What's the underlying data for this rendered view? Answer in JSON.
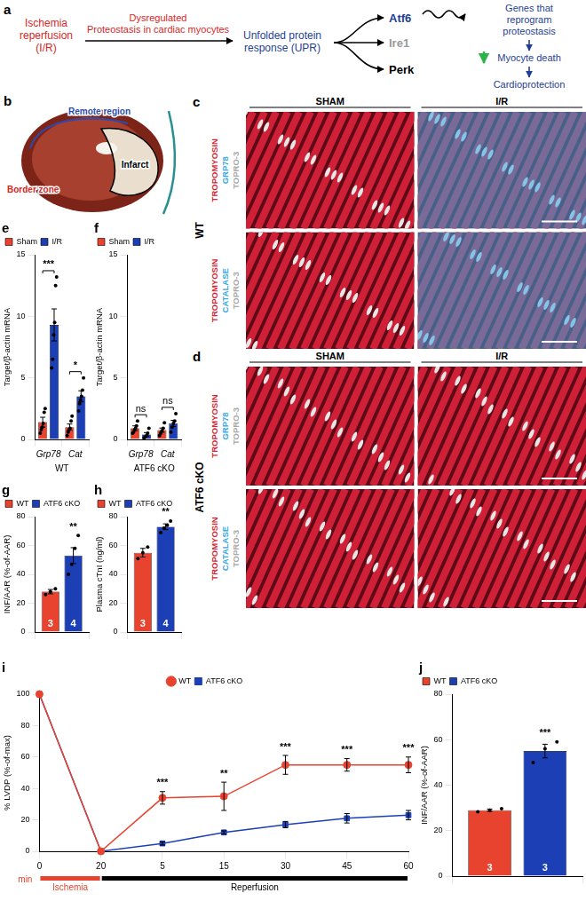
{
  "diagram": {
    "tag": "a",
    "source": {
      "lines": [
        "Ischemia",
        "reperfusion",
        "(I/R)"
      ],
      "color": "#d7261e"
    },
    "edge": {
      "lines": [
        "Dysregulated",
        "Proteostasis in cardiac myocytes"
      ],
      "color": "#d7261e"
    },
    "target": {
      "lines": [
        "Unfolded protein",
        "response (UPR)"
      ],
      "color": "#1f3f95"
    },
    "branches": [
      {
        "label": "Atf6",
        "color": "#1f3f95"
      },
      {
        "label": "Ire1",
        "color": "#9a9a9a"
      },
      {
        "label": "Perk",
        "color": "#000000"
      }
    ],
    "outcomes": [
      {
        "lines": [
          "Genes that",
          "reprogram",
          "proteostasis"
        ]
      },
      {
        "lines": [
          "Myocyte death"
        ]
      },
      {
        "lines": [
          "Cardioprotection"
        ]
      }
    ],
    "outcome_color": "#1f3f95"
  },
  "heart": {
    "tag": "b",
    "regions": [
      {
        "label": "Remote region",
        "color": "#2b4bb0"
      },
      {
        "label": "Border zone",
        "color": "#d7261e"
      },
      {
        "label": "Infarct",
        "color": "#000000"
      }
    ]
  },
  "micrographs": {
    "stain_colors": {
      "TROPOMYOSIN": "#d81f36",
      "GRP78": "#35a8e8",
      "CATALASE": "#35a8e8",
      "TOPRO-3": "#a8a8a8"
    },
    "panels": [
      {
        "tag": "c",
        "genotype": "WT",
        "columns": [
          "SHAM",
          "I/R"
        ],
        "rows": [
          [
            "TROPOMYOSIN",
            "GRP78",
            "TOPRO-3"
          ],
          [
            "TROPOMYOSIN",
            "CATALASE",
            "TOPRO-3"
          ]
        ]
      },
      {
        "tag": "d",
        "genotype": "ATF6 cKO",
        "columns": [
          "SHAM",
          "I/R"
        ],
        "rows": [
          [
            "TROPOMYOSIN",
            "GRP78",
            "TOPRO-3"
          ],
          [
            "TROPOMYOSIN",
            "CATALASE",
            "TOPRO-3"
          ]
        ]
      }
    ]
  },
  "chart_data": [
    {
      "tag": "e",
      "type": "bar",
      "y_label": "Target/β-actin mRNA",
      "x_label": "WT",
      "categories": [
        "Grp78",
        "Cat"
      ],
      "ylim": [
        0,
        15
      ],
      "yticks": [
        0,
        5,
        10,
        15
      ],
      "grid": false,
      "legend": "top-left",
      "significance": [
        "***",
        "*"
      ],
      "series": [
        {
          "name": "Sham",
          "color": "#e8432f",
          "values": [
            1.4,
            1.0
          ],
          "errors": [
            0.4,
            0.25
          ],
          "points": [
            [
              0.5,
              0.8,
              1.0,
              1.3,
              2.2,
              2.5
            ],
            [
              0.3,
              0.6,
              0.8,
              0.9,
              1.5,
              1.9
            ]
          ]
        },
        {
          "name": "I/R",
          "color": "#1c3fb5",
          "values": [
            9.3,
            3.5
          ],
          "errors": [
            1.3,
            0.45
          ],
          "points": [
            [
              5.8,
              6.5,
              8.5,
              9.5,
              12.5,
              13.2
            ],
            [
              2.3,
              2.9,
              3.2,
              3.5,
              4.0,
              5.0
            ]
          ]
        }
      ]
    },
    {
      "tag": "f",
      "type": "bar",
      "y_label": "Target/β-actin mRNA",
      "x_label": "ATF6 cKO",
      "categories": [
        "Grp78",
        "Cat"
      ],
      "ylim": [
        0,
        15
      ],
      "yticks": [
        0,
        5,
        10,
        15
      ],
      "grid": false,
      "legend": "top-left",
      "significance": [
        "ns",
        "ns"
      ],
      "series": [
        {
          "name": "Sham",
          "color": "#e8432f",
          "values": [
            0.9,
            0.75
          ],
          "errors": [
            0.2,
            0.17
          ],
          "points": [
            [
              0.5,
              0.6,
              0.8,
              0.9,
              1.1,
              1.5
            ],
            [
              0.3,
              0.5,
              0.7,
              0.9,
              1.35
            ]
          ]
        },
        {
          "name": "I/R",
          "color": "#1c3fb5",
          "values": [
            0.4,
            1.3
          ],
          "errors": [
            0.15,
            0.25
          ],
          "points": [
            [
              0.1,
              0.2,
              0.3,
              0.5,
              0.9
            ],
            [
              0.6,
              1.0,
              1.3,
              1.5,
              2.1
            ]
          ]
        }
      ]
    },
    {
      "tag": "g",
      "type": "bar",
      "y_label": "INF/AAR (%-of-AAR)",
      "categories": [
        null
      ],
      "ylim": [
        0,
        80
      ],
      "yticks": [
        0,
        20,
        40,
        60,
        80
      ],
      "grid": false,
      "legend": "top-left",
      "series": [
        {
          "name": "WT",
          "color": "#e8432f",
          "values": [
            28
          ],
          "errors": [
            1.5
          ],
          "points": [
            [
              26,
              28,
              30
            ]
          ],
          "n": [
            3
          ]
        },
        {
          "name": "ATF6 cKO",
          "color": "#1c3fb5",
          "values": [
            53
          ],
          "errors": [
            5.5
          ],
          "points": [
            [
              40,
              47,
              58,
              67
            ]
          ],
          "n": [
            4
          ],
          "significance": [
            "**"
          ]
        }
      ]
    },
    {
      "tag": "h",
      "type": "bar",
      "y_label": "Plasma cTnI (ng/ml)",
      "categories": [
        null
      ],
      "ylim": [
        0,
        80
      ],
      "yticks": [
        0,
        20,
        40,
        60,
        80
      ],
      "grid": false,
      "legend": "top-left",
      "series": [
        {
          "name": "WT",
          "color": "#e8432f",
          "values": [
            55
          ],
          "errors": [
            3
          ],
          "points": [
            [
              51,
              55,
              59
            ]
          ],
          "n": [
            3
          ]
        },
        {
          "name": "ATF6 cKO",
          "color": "#1c3fb5",
          "values": [
            73
          ],
          "errors": [
            2
          ],
          "points": [
            [
              69,
              72,
              74,
              77
            ]
          ],
          "n": [
            4
          ],
          "significance": [
            "**"
          ]
        }
      ]
    },
    {
      "tag": "i",
      "type": "line",
      "y_label": "% LVDP (%-of-max)",
      "categories": [
        "0",
        "20",
        "5",
        "15",
        "30",
        "45",
        "60"
      ],
      "x_unit": "min",
      "phases": [
        {
          "label": "Ischemia",
          "color": "#e8432f",
          "from": "0",
          "to": "20"
        },
        {
          "label": "Reperfusion",
          "color": "#000000",
          "from": "20",
          "to": "60"
        }
      ],
      "ylim": [
        0,
        100
      ],
      "yticks": [
        0,
        20,
        40,
        60,
        80,
        100
      ],
      "grid": false,
      "legend": "top",
      "significance": [
        null,
        null,
        "***",
        "**",
        "***",
        "***",
        "***"
      ],
      "series": [
        {
          "name": "WT",
          "color": "#e8432f",
          "marker": "circle",
          "line_style": "solid",
          "values": [
            100,
            0,
            34,
            35,
            55,
            55,
            55
          ],
          "errors": [
            0,
            0,
            4,
            9,
            6,
            4,
            5
          ]
        },
        {
          "name": "ATF6 cKO",
          "color": "#1c3fb5",
          "marker": "square",
          "line_style": "solid",
          "values": [
            100,
            0,
            5,
            12,
            17,
            21,
            23
          ],
          "errors": [
            0,
            0,
            1,
            1,
            2,
            3,
            3
          ]
        }
      ]
    },
    {
      "tag": "j",
      "type": "bar",
      "y_label": "INF/AAR (%-of-AAR)",
      "categories": [
        null
      ],
      "ylim": [
        0,
        80
      ],
      "yticks": [
        0,
        20,
        40,
        60,
        80
      ],
      "grid": false,
      "legend": "top-left",
      "series": [
        {
          "name": "WT",
          "color": "#e8432f",
          "values": [
            29
          ],
          "errors": [
            0.5
          ],
          "points": [
            [
              28.3,
              29,
              29.7
            ]
          ],
          "n": [
            3
          ]
        },
        {
          "name": "ATF6 cKO",
          "color": "#1c3fb5",
          "values": [
            55
          ],
          "errors": [
            3
          ],
          "points": [
            [
              50,
              56,
              59
            ]
          ],
          "n": [
            3
          ],
          "significance": [
            "***"
          ]
        }
      ]
    }
  ]
}
